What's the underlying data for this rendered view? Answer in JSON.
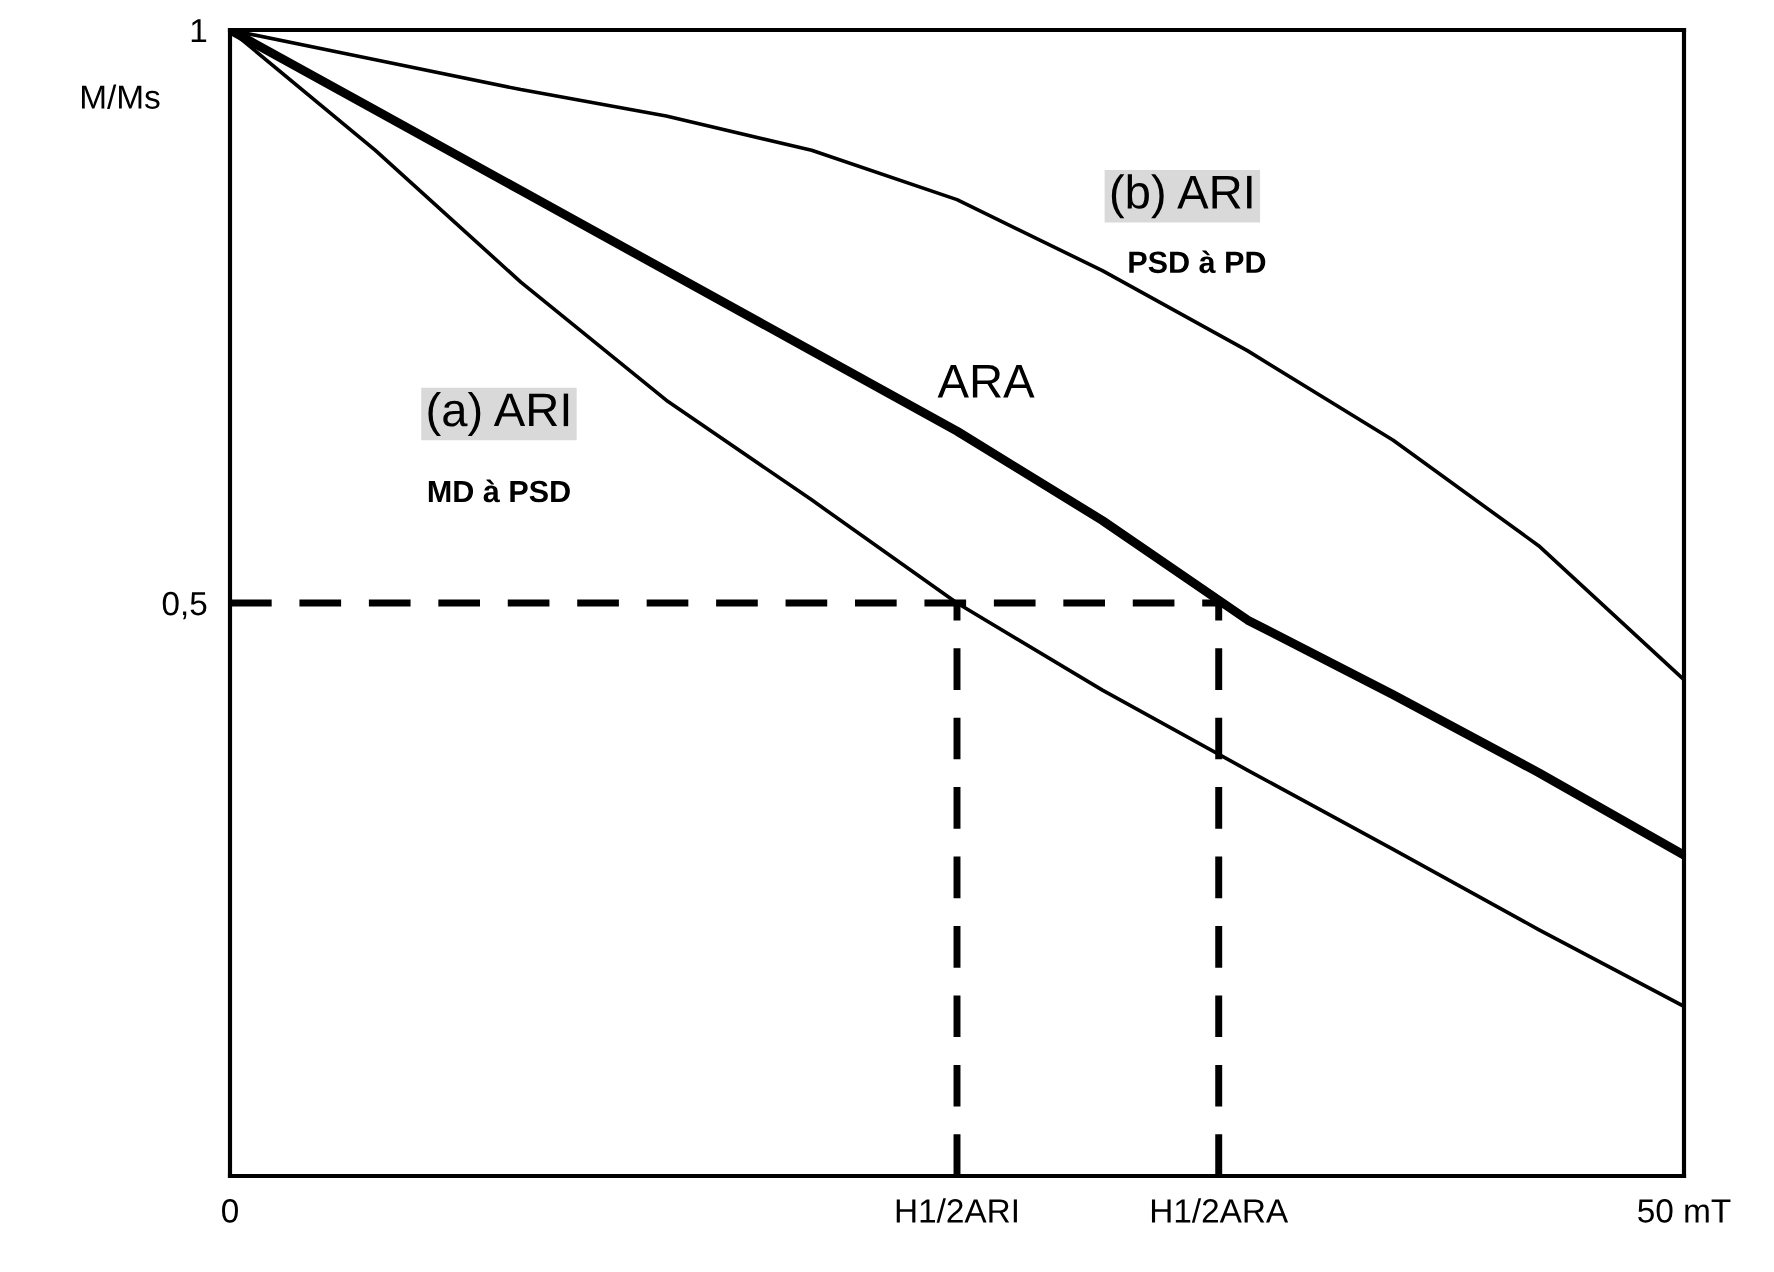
{
  "chart_data": {
    "type": "line",
    "ylabel": "M/Ms",
    "x": [
      0,
      5,
      10,
      15,
      20,
      25,
      30,
      35,
      40,
      45,
      50
    ],
    "series": [
      {
        "name": "(a) ARI",
        "color": "#000000",
        "values": [
          1,
          0.895,
          0.78,
          0.677,
          0.59,
          0.5,
          0.424,
          0.354,
          0.285,
          0.215,
          0.148
        ]
      },
      {
        "name": "ARA",
        "color": "#000000",
        "values": [
          1,
          0.93,
          0.86,
          0.79,
          0.72,
          0.65,
          0.572,
          0.485,
          0.42,
          0.352,
          0.28
        ]
      },
      {
        "name": "(b) ARI",
        "color": "#000000",
        "values": [
          1,
          0.974,
          0.948,
          0.925,
          0.895,
          0.852,
          0.79,
          0.72,
          0.642,
          0.55,
          0.433
        ]
      }
    ],
    "xlim": [
      0,
      50
    ],
    "ylim": [
      0,
      1
    ],
    "xticks": [
      {
        "value": 0,
        "label": "0"
      },
      {
        "value": 25,
        "label": "H1/2ARI"
      },
      {
        "value": 34,
        "label": "H1/2ARA"
      },
      {
        "value": 50,
        "label": "50 mT"
      }
    ],
    "yticks": [
      {
        "value": 0.5,
        "label": "0,5"
      },
      {
        "value": 1,
        "label": "1"
      }
    ],
    "ref_lines": [
      {
        "axis": "y",
        "value": 0.5,
        "line_style": "dashed",
        "color": "#000000"
      },
      {
        "axis": "x",
        "value": 25,
        "line_style": "dashed",
        "color": "#000000"
      },
      {
        "axis": "x",
        "value": 34,
        "line_style": "dashed",
        "color": "#000000"
      }
    ],
    "annotations": [
      "MD à PSD",
      "PSD à PD"
    ],
    "grid": false,
    "legend": false,
    "marker": "none",
    "line_style": "solid"
  }
}
